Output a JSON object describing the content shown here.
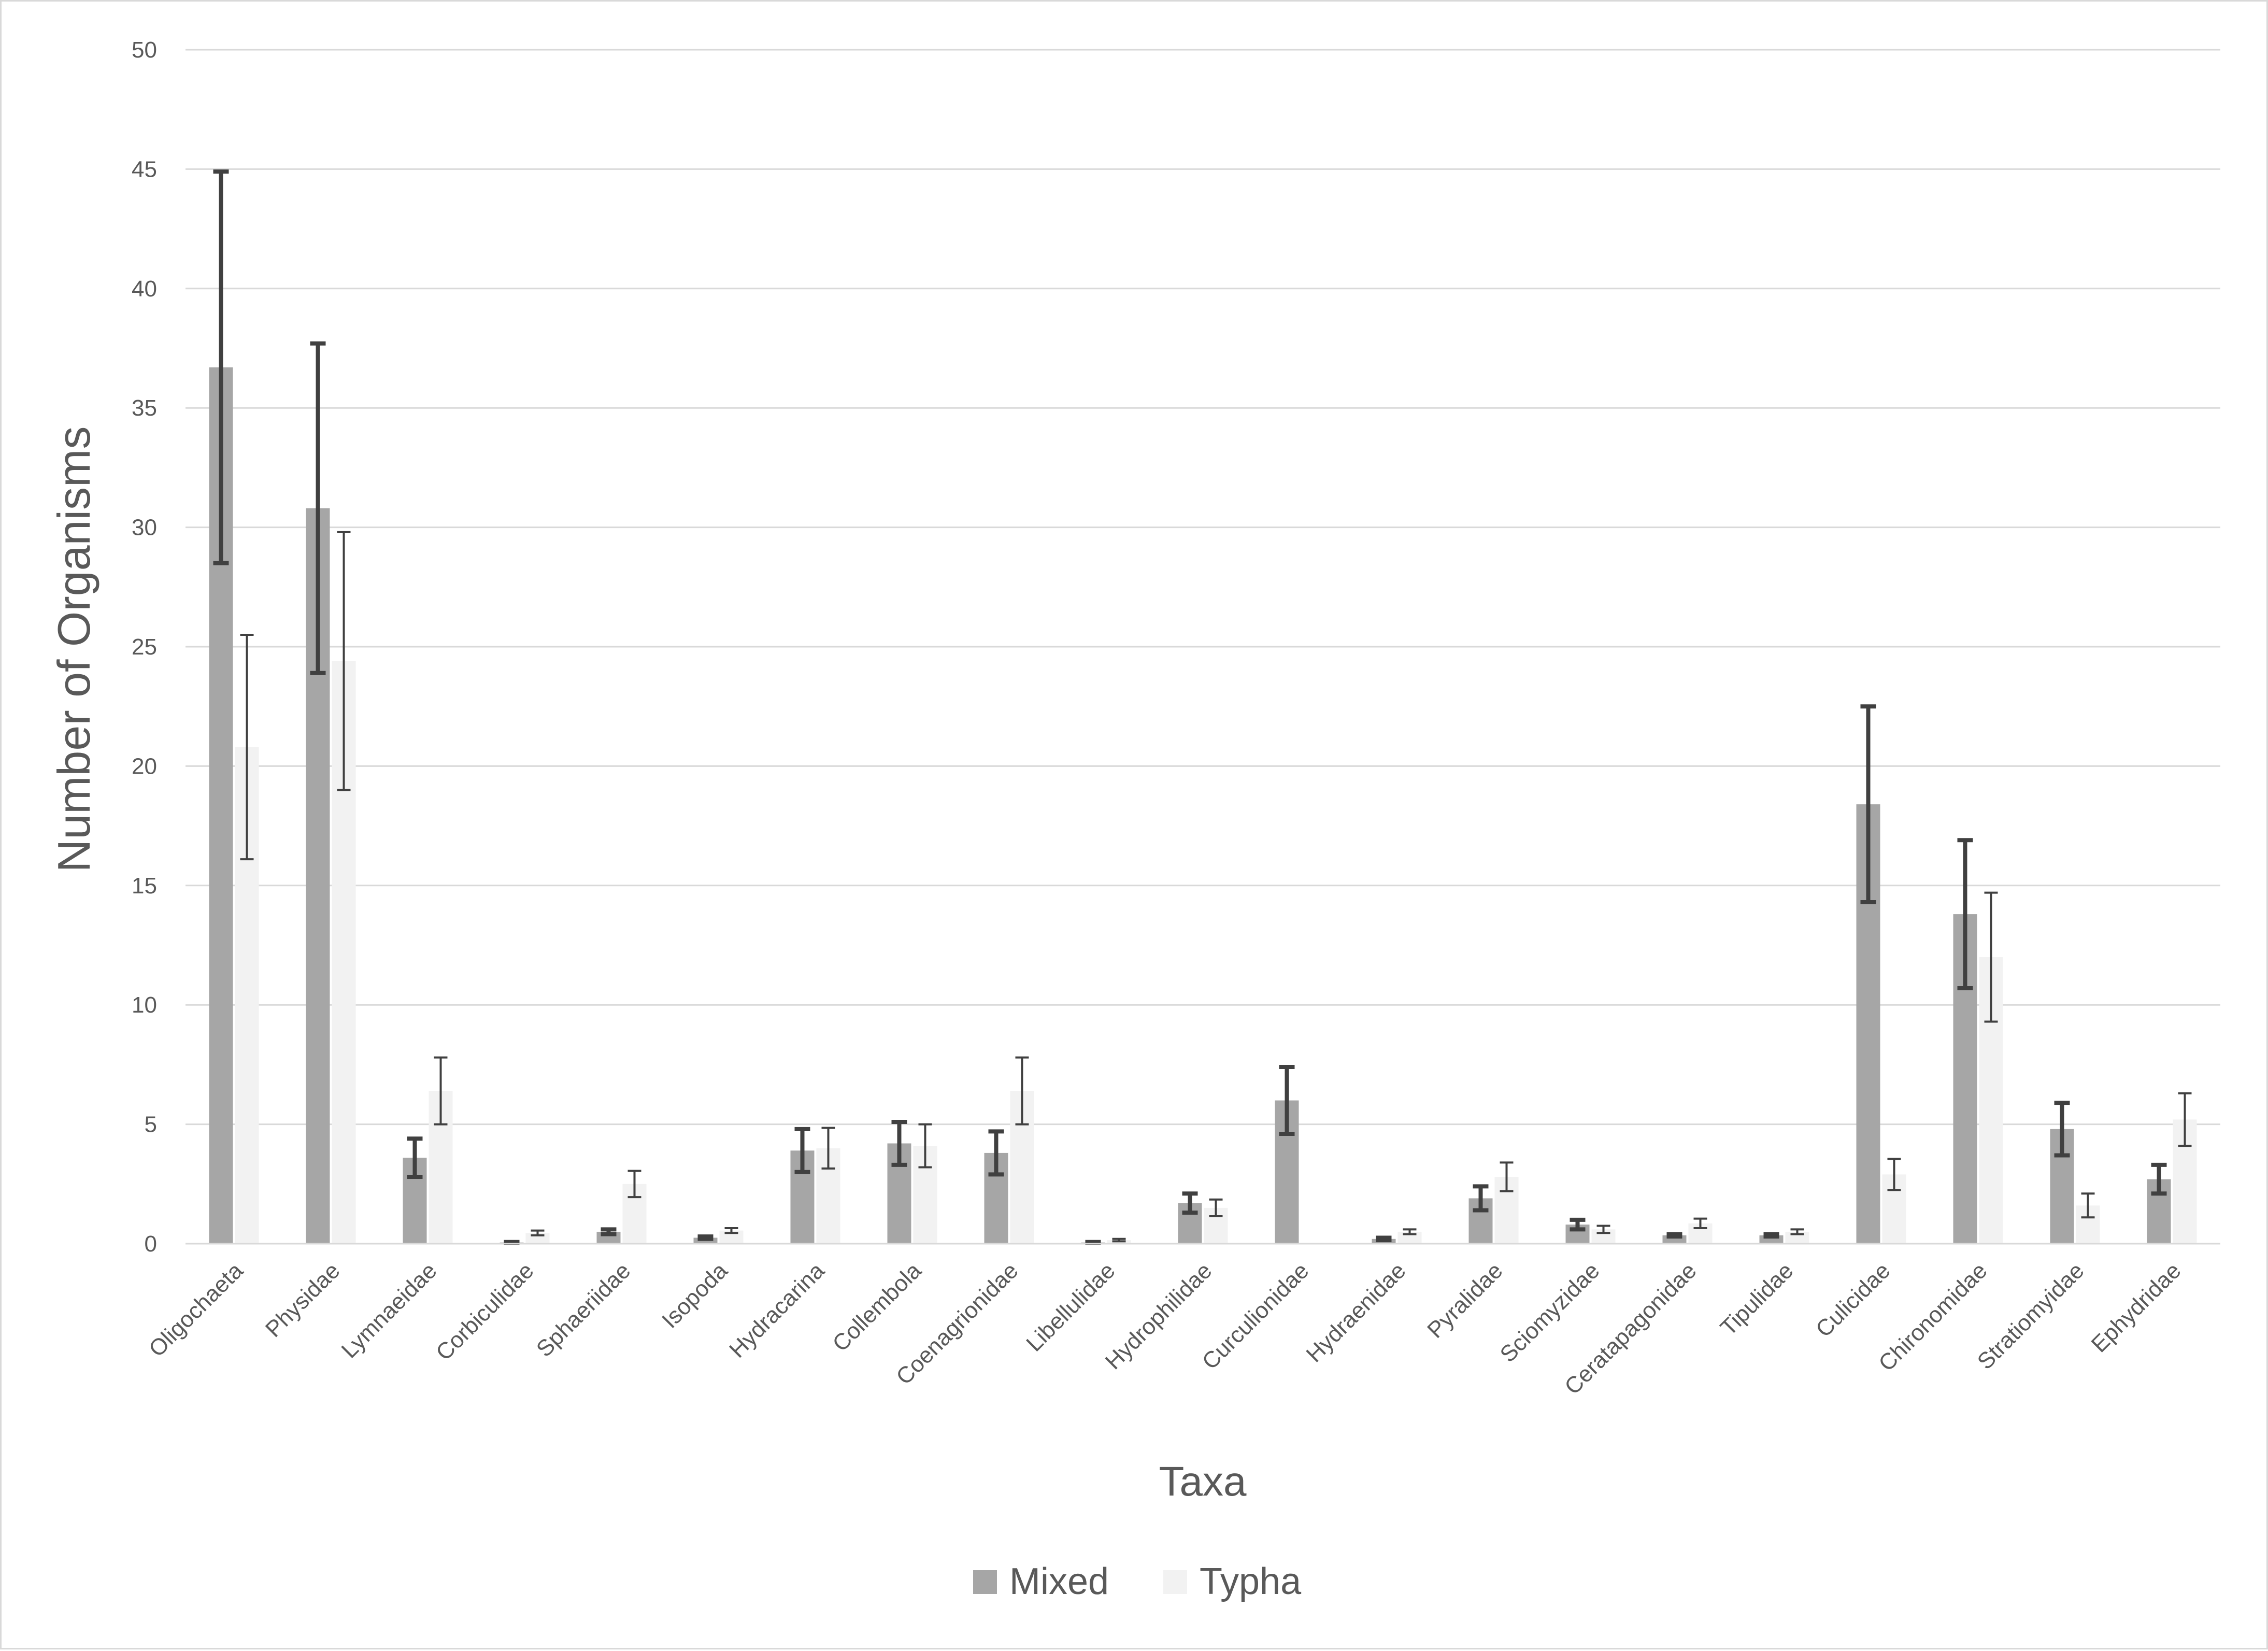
{
  "chart_data": {
    "type": "bar",
    "title": "",
    "xlabel": "Taxa",
    "ylabel": "Number of Organisms",
    "ylim": [
      0,
      50
    ],
    "yticks": [
      0,
      5,
      10,
      15,
      20,
      25,
      30,
      35,
      40,
      45,
      50
    ],
    "grid": true,
    "legend_position": "bottom",
    "categories": [
      "Oligochaeta",
      "Physidae",
      "Lymnaeidae",
      "Corbiculidae",
      "Sphaeriidae",
      "Isopoda",
      "Hydracarina",
      "Collembola",
      "Coenagrionidae",
      "Libellulidae",
      "Hydrophilidae",
      "Curculionidae",
      "Hydraenidae",
      "Pyralidae",
      "Sciomyzidae",
      "Ceratapagonidae",
      "Tipulidae",
      "Culicidae",
      "Chironomidae",
      "Stratiomyidae",
      "Ephydridae"
    ],
    "series": [
      {
        "name": "Mixed",
        "color": "#a6a6a6",
        "error_color": "#404040",
        "values": [
          36.7,
          30.8,
          3.6,
          0.05,
          0.5,
          0.25,
          3.9,
          4.2,
          3.8,
          0.05,
          1.7,
          6.0,
          0.2,
          1.9,
          0.8,
          0.35,
          0.35,
          18.4,
          13.8,
          4.8,
          2.7
        ],
        "errors": [
          8.2,
          6.9,
          0.8,
          0.02,
          0.1,
          0.05,
          0.9,
          0.9,
          0.9,
          0.02,
          0.4,
          1.4,
          0.05,
          0.5,
          0.2,
          0.05,
          0.05,
          4.1,
          3.1,
          1.1,
          0.6
        ]
      },
      {
        "name": "Typha",
        "color": "#f2f2f2",
        "error_color": "#404040",
        "values": [
          20.8,
          24.4,
          6.4,
          0.45,
          2.5,
          0.55,
          4.0,
          4.1,
          6.4,
          0.15,
          1.5,
          0,
          0.5,
          2.8,
          0.6,
          0.85,
          0.5,
          2.9,
          12.0,
          1.6,
          5.2
        ],
        "errors": [
          4.7,
          5.4,
          1.4,
          0.1,
          0.55,
          0.1,
          0.85,
          0.9,
          1.4,
          0.05,
          0.35,
          0,
          0.1,
          0.6,
          0.15,
          0.2,
          0.1,
          0.65,
          2.7,
          0.5,
          1.1
        ]
      }
    ]
  }
}
